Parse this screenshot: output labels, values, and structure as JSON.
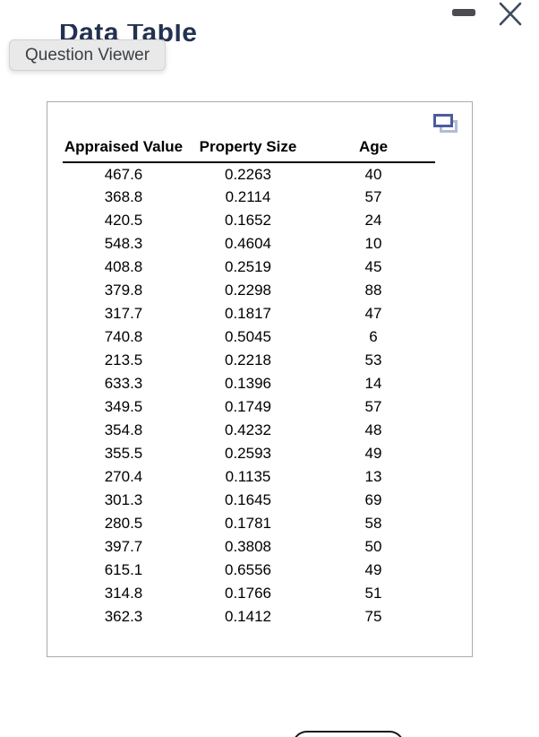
{
  "window": {
    "title": "Data Table",
    "minimize_icon": "minimize-dash",
    "close_icon": "close-x"
  },
  "tooltip": {
    "label": "Question Viewer"
  },
  "panel": {
    "popout_icon": "duplicate-window"
  },
  "table": {
    "columns": [
      "Appraised Value",
      "Property Size",
      "Age"
    ],
    "rows": [
      [
        "467.6",
        "0.2263",
        "40"
      ],
      [
        "368.8",
        "0.2114",
        "57"
      ],
      [
        "420.5",
        "0.1652",
        "24"
      ],
      [
        "548.3",
        "0.4604",
        "10"
      ],
      [
        "408.8",
        "0.2519",
        "45"
      ],
      [
        "379.8",
        "0.2298",
        "88"
      ],
      [
        "317.7",
        "0.1817",
        "47"
      ],
      [
        "740.8",
        "0.5045",
        "6"
      ],
      [
        "213.5",
        "0.2218",
        "53"
      ],
      [
        "633.3",
        "0.1396",
        "14"
      ],
      [
        "349.5",
        "0.1749",
        "57"
      ],
      [
        "354.8",
        "0.4232",
        "48"
      ],
      [
        "355.5",
        "0.2593",
        "49"
      ],
      [
        "270.4",
        "0.1135",
        "13"
      ],
      [
        "301.3",
        "0.1645",
        "69"
      ],
      [
        "280.5",
        "0.1781",
        "58"
      ],
      [
        "397.7",
        "0.3808",
        "50"
      ],
      [
        "615.1",
        "0.6556",
        "49"
      ],
      [
        "314.8",
        "0.1766",
        "51"
      ],
      [
        "362.3",
        "0.1412",
        "75"
      ]
    ]
  },
  "colors": {
    "title_text": "#233250",
    "tooltip_bg": "#e9e9ea",
    "tooltip_text": "#3c4043",
    "panel_border": "#ababab",
    "popout_front": "#4d5c9e",
    "popout_back": "#b2bbd8",
    "minimize_icon": "#4a4c4f",
    "close_icon": "#3e4b5d",
    "table_text": "#000000",
    "bottom_button_border": "#171a20"
  }
}
